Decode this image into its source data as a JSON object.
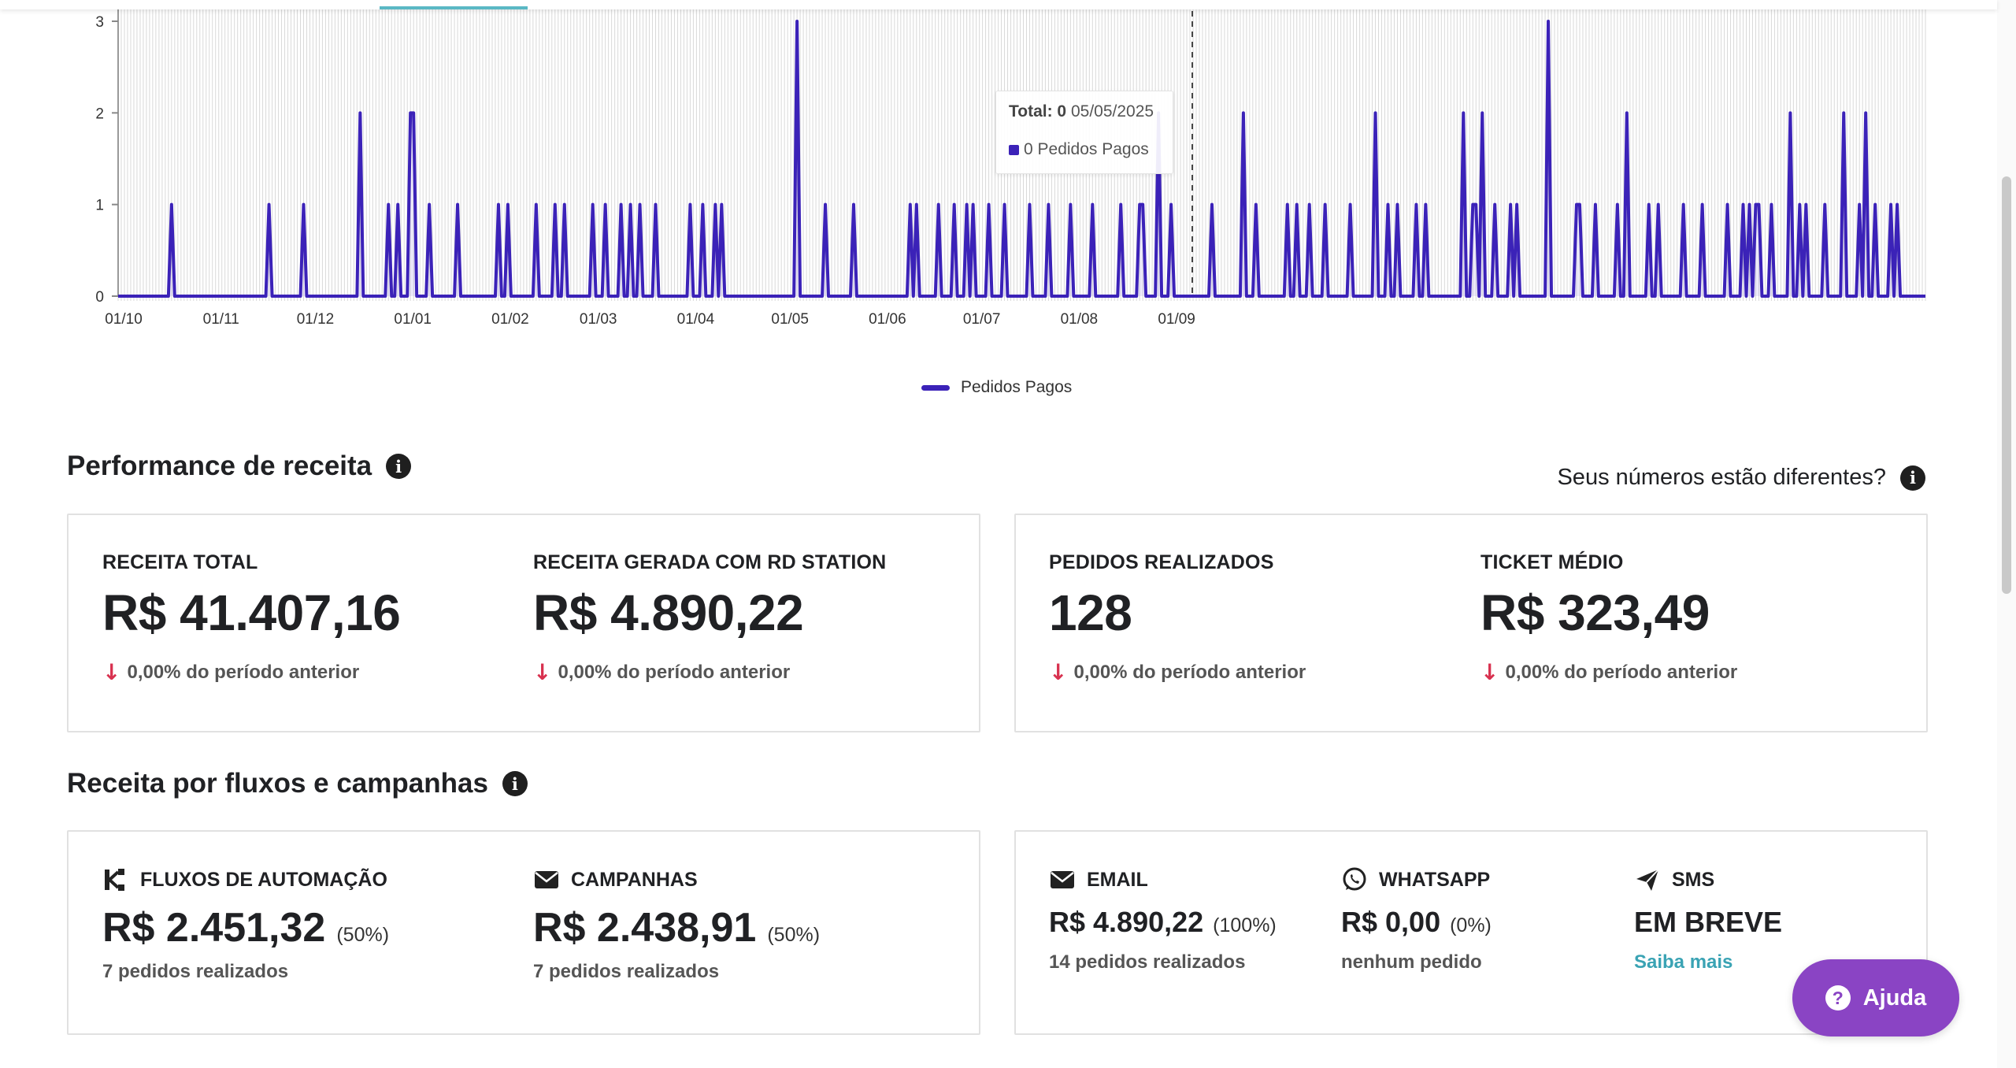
{
  "chart_data": {
    "type": "line",
    "series": [
      {
        "name": "Pedidos Pagos",
        "color": "#3b22b8"
      }
    ],
    "x_ticks": [
      "01/10",
      "01/11",
      "01/12",
      "01/01",
      "01/02",
      "01/03",
      "01/04",
      "01/05",
      "01/06",
      "01/07",
      "01/08",
      "01/09"
    ],
    "y_ticks": [
      "0",
      "1",
      "2",
      "3"
    ],
    "ylim": [
      0,
      3
    ],
    "peaks_by_day": [
      [
        17,
        1
      ],
      [
        48,
        1
      ],
      [
        59,
        1
      ],
      [
        77,
        2
      ],
      [
        86,
        1
      ],
      [
        89,
        1
      ],
      [
        93,
        2
      ],
      [
        94,
        2
      ],
      [
        99,
        1
      ],
      [
        108,
        1
      ],
      [
        121,
        1
      ],
      [
        124,
        1
      ],
      [
        133,
        1
      ],
      [
        139,
        1
      ],
      [
        142,
        1
      ],
      [
        151,
        1
      ],
      [
        155,
        1
      ],
      [
        160,
        1
      ],
      [
        163,
        1
      ],
      [
        166,
        1
      ],
      [
        171,
        1
      ],
      [
        182,
        1
      ],
      [
        186,
        1
      ],
      [
        190,
        1
      ],
      [
        192,
        1
      ],
      [
        216,
        3
      ],
      [
        225,
        1
      ],
      [
        234,
        1
      ],
      [
        252,
        1
      ],
      [
        254,
        1
      ],
      [
        261,
        1
      ],
      [
        266,
        1
      ],
      [
        270,
        1
      ],
      [
        272,
        1
      ],
      [
        277,
        1
      ],
      [
        282,
        1
      ],
      [
        290,
        1
      ],
      [
        296,
        1
      ],
      [
        303,
        1
      ],
      [
        310,
        1
      ],
      [
        319,
        1
      ],
      [
        325,
        1
      ],
      [
        326,
        1
      ],
      [
        331,
        2
      ],
      [
        335,
        1
      ],
      [
        348,
        1
      ],
      [
        358,
        2
      ],
      [
        362,
        1
      ],
      [
        372,
        1
      ],
      [
        375,
        1
      ],
      [
        379,
        1
      ],
      [
        384,
        1
      ],
      [
        392,
        1
      ],
      [
        400,
        2
      ],
      [
        404,
        1
      ],
      [
        407,
        1
      ],
      [
        413,
        1
      ],
      [
        416,
        1
      ],
      [
        428,
        2
      ],
      [
        431,
        1
      ],
      [
        432,
        1
      ],
      [
        434,
        2
      ],
      [
        438,
        1
      ],
      [
        443,
        1
      ],
      [
        445,
        1
      ],
      [
        455,
        3
      ],
      [
        464,
        1
      ],
      [
        465,
        1
      ],
      [
        470,
        1
      ],
      [
        477,
        1
      ],
      [
        480,
        2
      ],
      [
        487,
        1
      ],
      [
        490,
        1
      ],
      [
        498,
        1
      ],
      [
        504,
        1
      ],
      [
        512,
        1
      ],
      [
        517,
        1
      ],
      [
        519,
        1
      ],
      [
        521,
        1
      ],
      [
        522,
        1
      ],
      [
        526,
        1
      ],
      [
        532,
        2
      ],
      [
        535,
        1
      ],
      [
        537,
        1
      ],
      [
        543,
        1
      ],
      [
        549,
        2
      ],
      [
        554,
        1
      ],
      [
        556,
        2
      ],
      [
        559,
        1
      ],
      [
        564,
        1
      ],
      [
        566,
        1
      ]
    ]
  },
  "tooltip": {
    "total_label": "Total: 0",
    "date": "05/05/2025",
    "series_text": "0 Pedidos Pagos"
  },
  "legend": {
    "label": "Pedidos Pagos"
  },
  "performance": {
    "title": "Performance de receita",
    "diff_link": "Seus números estão diferentes?",
    "metrics": [
      {
        "label": "RECEITA TOTAL",
        "value": "R$ 41.407,16",
        "change": "0,00% do período anterior"
      },
      {
        "label": "RECEITA GERADA COM RD STATION",
        "value": "R$ 4.890,22",
        "change": "0,00% do período anterior"
      },
      {
        "label": "PEDIDOS REALIZADOS",
        "value": "128",
        "change": "0,00% do período anterior"
      },
      {
        "label": "TICKET MÉDIO",
        "value": "R$ 323,49",
        "change": "0,00% do período anterior"
      }
    ]
  },
  "flows": {
    "title": "Receita por fluxos e campanhas",
    "automation": {
      "label": "FLUXOS DE AUTOMAÇÃO",
      "value": "R$ 2.451,32",
      "pct": "(50%)",
      "sub": "7 pedidos realizados"
    },
    "campaigns": {
      "label": "CAMPANHAS",
      "value": "R$ 2.438,91",
      "pct": "(50%)",
      "sub": "7 pedidos realizados"
    },
    "email": {
      "label": "EMAIL",
      "value": "R$ 4.890,22",
      "pct": "(100%)",
      "sub": "14 pedidos realizados"
    },
    "whatsapp": {
      "label": "WHATSAPP",
      "value": "R$ 0,00",
      "pct": "(0%)",
      "sub": "nenhum pedido"
    },
    "sms": {
      "label": "SMS",
      "value": "EM BREVE",
      "sub": "Saiba mais"
    }
  },
  "help": {
    "label": "Ajuda"
  }
}
